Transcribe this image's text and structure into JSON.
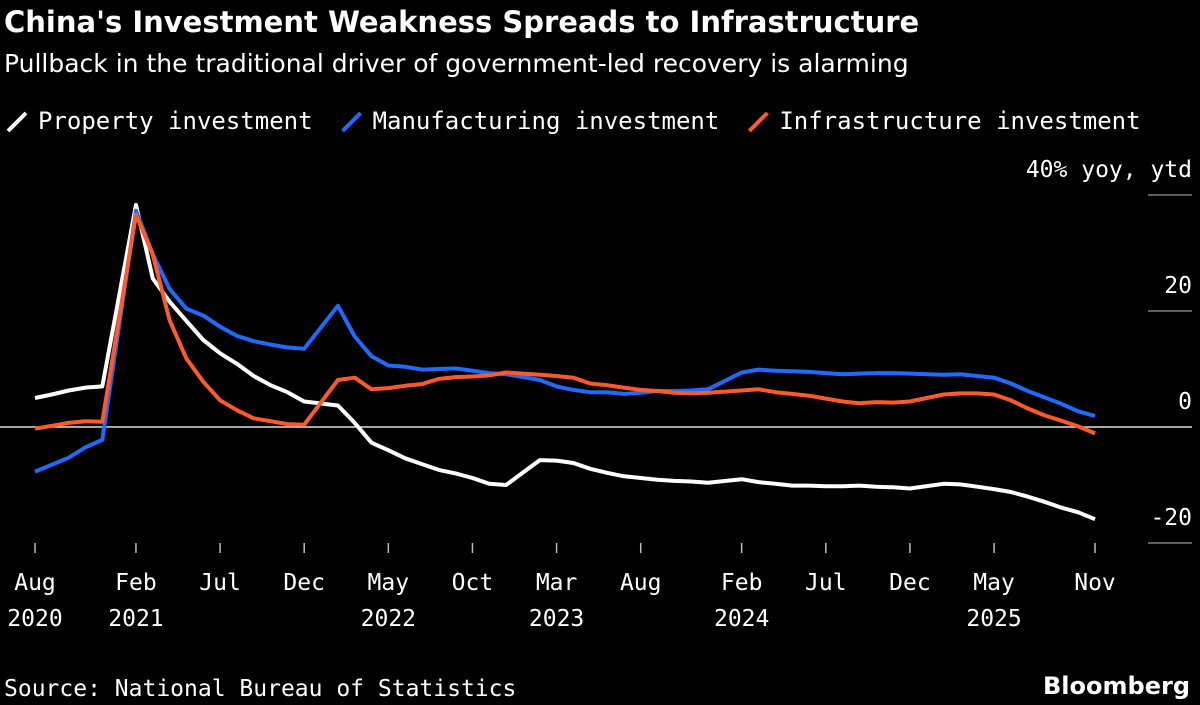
{
  "chart_data": {
    "type": "line",
    "title": "China's Investment Weakness Spreads to Infrastructure",
    "subtitle": "Pullback in the traditional driver of government-led recovery is alarming",
    "source": "Source: National Bureau of Statistics",
    "brand": "Bloomberg",
    "x": [
      "2020-08",
      "2020-09",
      "2020-10",
      "2020-11",
      "2020-12",
      "2021-02",
      "2021-03",
      "2021-04",
      "2021-05",
      "2021-06",
      "2021-07",
      "2021-08",
      "2021-09",
      "2021-10",
      "2021-11",
      "2021-12",
      "2022-02",
      "2022-03",
      "2022-04",
      "2022-05",
      "2022-06",
      "2022-07",
      "2022-08",
      "2022-09",
      "2022-10",
      "2022-11",
      "2022-12",
      "2023-02",
      "2023-03",
      "2023-04",
      "2023-05",
      "2023-06",
      "2023-07",
      "2023-08",
      "2023-09",
      "2023-10",
      "2023-11",
      "2023-12",
      "2024-02",
      "2024-03",
      "2024-04",
      "2024-05",
      "2024-06",
      "2024-07",
      "2024-08",
      "2024-09",
      "2024-10",
      "2024-11",
      "2024-12",
      "2025-02",
      "2025-03",
      "2025-04",
      "2025-05",
      "2025-06",
      "2025-07",
      "2025-08",
      "2025-09",
      "2025-10",
      "2025-11"
    ],
    "series": [
      {
        "name": "Property investment",
        "color": "#ffffff",
        "values": [
          5.0,
          5.6,
          6.3,
          6.8,
          7.0,
          38.3,
          25.6,
          21.6,
          18.3,
          15.0,
          12.7,
          10.9,
          8.8,
          7.2,
          6.0,
          4.4,
          3.7,
          0.7,
          -2.7,
          -4.0,
          -5.4,
          -6.4,
          -7.4,
          -8.0,
          -8.8,
          -9.8,
          -10.0,
          -5.7,
          -5.8,
          -6.2,
          -7.2,
          -7.9,
          -8.5,
          -8.8,
          -9.1,
          -9.3,
          -9.4,
          -9.6,
          -9.0,
          -9.5,
          -9.8,
          -10.1,
          -10.1,
          -10.2,
          -10.2,
          -10.1,
          -10.3,
          -10.4,
          -10.6,
          -9.8,
          -9.9,
          -10.3,
          -10.7,
          -11.2,
          -12.0,
          -12.9,
          -13.9,
          -14.7,
          -15.9
        ]
      },
      {
        "name": "Manufacturing investment",
        "color": "#1f6bff",
        "values": [
          -7.7,
          -6.5,
          -5.3,
          -3.5,
          -2.2,
          37.3,
          29.8,
          23.8,
          20.4,
          19.2,
          17.3,
          15.7,
          14.8,
          14.2,
          13.7,
          13.5,
          20.9,
          15.6,
          12.2,
          10.6,
          10.4,
          9.9,
          10.0,
          10.1,
          9.7,
          9.3,
          9.1,
          8.1,
          7.0,
          6.4,
          6.0,
          6.0,
          5.7,
          5.9,
          6.2,
          6.2,
          6.3,
          6.5,
          9.4,
          9.9,
          9.7,
          9.6,
          9.5,
          9.3,
          9.1,
          9.2,
          9.3,
          9.3,
          9.2,
          9.0,
          9.1,
          8.8,
          8.5,
          7.5,
          6.2,
          5.1,
          4.0,
          2.7,
          1.9
        ]
      },
      {
        "name": "Infrastructure investment",
        "color": "#ff5a2a",
        "values": [
          -0.3,
          0.2,
          0.7,
          1.0,
          0.9,
          36.6,
          29.7,
          18.4,
          11.8,
          7.8,
          4.6,
          2.9,
          1.5,
          1.0,
          0.5,
          0.4,
          8.1,
          8.5,
          6.5,
          6.7,
          7.1,
          7.4,
          8.3,
          8.6,
          8.7,
          8.9,
          9.4,
          9.0,
          8.8,
          8.5,
          7.5,
          7.2,
          6.8,
          6.4,
          6.2,
          5.9,
          5.8,
          5.9,
          6.3,
          6.5,
          6.0,
          5.7,
          5.4,
          4.9,
          4.4,
          4.1,
          4.3,
          4.2,
          4.4,
          5.6,
          5.8,
          5.8,
          5.6,
          4.6,
          3.2,
          2.0,
          1.1,
          0.1,
          -1.1
        ]
      }
    ],
    "xlim": [
      "2020-08",
      "2025-11"
    ],
    "xticks": [
      {
        "value": "2020-08",
        "label": "Aug 2020"
      },
      {
        "value": "2021-02",
        "label": "Feb 2021"
      },
      {
        "value": "2021-07",
        "label": "Jul"
      },
      {
        "value": "2021-12",
        "label": "Dec"
      },
      {
        "value": "2022-05",
        "label": "May 2022"
      },
      {
        "value": "2022-10",
        "label": "Oct"
      },
      {
        "value": "2023-03",
        "label": "Mar 2023"
      },
      {
        "value": "2023-08",
        "label": "Aug"
      },
      {
        "value": "2024-02",
        "label": "Feb 2024"
      },
      {
        "value": "2024-07",
        "label": "Jul"
      },
      {
        "value": "2024-12",
        "label": "Dec"
      },
      {
        "value": "2025-05",
        "label": "May 2025"
      },
      {
        "value": "2025-11",
        "label": "Nov"
      }
    ],
    "ylim": [
      -20,
      40
    ],
    "yticks": [
      -20,
      0,
      20,
      {
        "value": 40,
        "label": "40% yoy, ytd"
      }
    ]
  }
}
